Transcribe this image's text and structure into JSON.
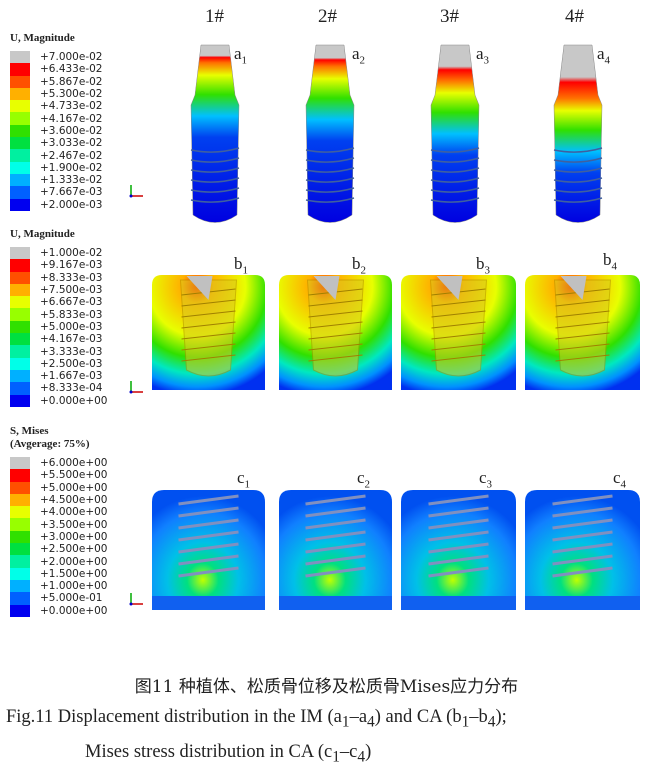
{
  "columns": [
    "1#",
    "2#",
    "3#",
    "4#"
  ],
  "colorbar_colors": [
    "#c8c8c8",
    "#ff0000",
    "#ff5000",
    "#ffb000",
    "#e8ff00",
    "#98ff00",
    "#30e000",
    "#00e040",
    "#00f0a0",
    "#00ffe8",
    "#00b0ff",
    "#0060ff",
    "#0000f0"
  ],
  "legends": [
    {
      "title": [
        "U, Magnitude"
      ],
      "labels": [
        "+7.000e-02",
        "+6.433e-02",
        "+5.867e-02",
        "+5.300e-02",
        "+4.733e-02",
        "+4.167e-02",
        "+3.600e-02",
        "+3.033e-02",
        "+2.467e-02",
        "+1.900e-02",
        "+1.333e-02",
        "+7.667e-03",
        "+2.000e-03"
      ]
    },
    {
      "title": [
        "U, Magnitude"
      ],
      "labels": [
        "+1.000e-02",
        "+9.167e-03",
        "+8.333e-03",
        "+7.500e-03",
        "+6.667e-03",
        "+5.833e-03",
        "+5.000e-03",
        "+4.167e-03",
        "+3.333e-03",
        "+2.500e-03",
        "+1.667e-03",
        "+8.333e-04",
        "+0.000e+00"
      ]
    },
    {
      "title": [
        "S, Mises",
        "(Avgerage: 75%)"
      ],
      "labels": [
        "+6.000e+00",
        "+5.500e+00",
        "+5.000e+00",
        "+4.500e+00",
        "+4.000e+00",
        "+3.500e+00",
        "+3.000e+00",
        "+2.500e+00",
        "+2.000e+00",
        "+1.500e+00",
        "+1.000e+00",
        "+5.000e-01",
        "+0.000e+00"
      ]
    }
  ],
  "row_labels": {
    "a": [
      {
        "l": "a",
        "s": "1"
      },
      {
        "l": "a",
        "s": "2"
      },
      {
        "l": "a",
        "s": "3"
      },
      {
        "l": "a",
        "s": "4"
      }
    ],
    "b": [
      {
        "l": "b",
        "s": "1"
      },
      {
        "l": "b",
        "s": "2"
      },
      {
        "l": "b",
        "s": "3"
      },
      {
        "l": "b",
        "s": "4"
      }
    ],
    "c": [
      {
        "l": "c",
        "s": "1"
      },
      {
        "l": "c",
        "s": "2"
      },
      {
        "l": "c",
        "s": "3"
      },
      {
        "l": "c",
        "s": "4"
      }
    ]
  },
  "caption": {
    "cn": "图11  种植体、松质骨位移及松质骨Mises应力分布",
    "en_line1": {
      "prefix": "Fig.11  Displacement distribution in the IM (a",
      "s1": "1",
      "mid1": "–a",
      "s2": "4",
      "mid2": ") and CA (b",
      "s3": "1",
      "mid3": "–b",
      "s4": "4",
      "end": ");"
    },
    "en_line2": {
      "prefix": "Mises stress distribution in CA (c",
      "s1": "1",
      "mid": "–c",
      "s2": "4",
      "end": ")"
    }
  }
}
